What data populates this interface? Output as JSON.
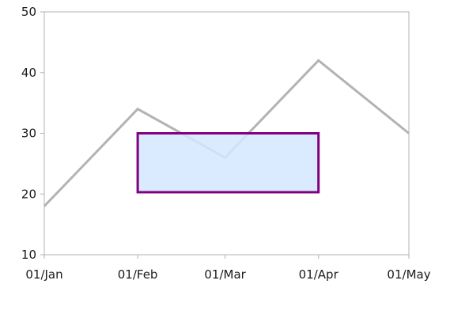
{
  "chart_data": {
    "type": "line",
    "x": [
      "01/Jan",
      "01/Feb",
      "01/Mar",
      "01/Apr",
      "01/May"
    ],
    "x_dates": [
      "2000-01-01",
      "2000-02-01",
      "2000-03-01",
      "2000-04-01",
      "2000-05-01"
    ],
    "series": [
      {
        "values": [
          18,
          34,
          26,
          42,
          30
        ],
        "color": "#b3b3b3"
      }
    ],
    "ylim": [
      10,
      50
    ],
    "yticks": [
      10,
      20,
      30,
      40,
      50
    ],
    "annotation_rect": {
      "x_start": "2000-02-01",
      "x_end": "2000-04-01",
      "y_start": 20.3,
      "y_end": 30,
      "fill": "#d4e8ff",
      "stroke": "#800080"
    },
    "grid": false,
    "title": "",
    "xlabel": "",
    "ylabel": ""
  }
}
